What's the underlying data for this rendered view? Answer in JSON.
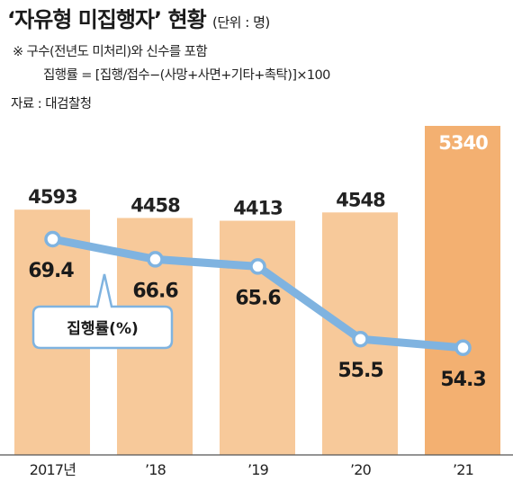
{
  "header": {
    "title": "‘자유형 미집행자’ 현황",
    "unit": "(단위 : 명)",
    "note1": "※ 구수(전년도 미처리)와 신수를 포함",
    "note2": "집행률 = [집행/접수−(사망+사면+기타+촉탁)]×100",
    "source": "자료 : 대검찰청"
  },
  "chart_data": {
    "type": "bar",
    "categories": [
      "2017년",
      "’18",
      "’19",
      "’20",
      "’21"
    ],
    "series": [
      {
        "type": "bar",
        "values": [
          4593,
          4458,
          4413,
          4548,
          5340
        ],
        "color": "#f7c99a",
        "last_color": "#f3b071"
      },
      {
        "type": "line",
        "name": "집행률(%)",
        "values": [
          69.4,
          66.6,
          65.6,
          55.5,
          54.3
        ],
        "color": "#7fb3e0"
      }
    ],
    "bar_value_labels": [
      "4593",
      "4458",
      "4413",
      "4548",
      "5340"
    ],
    "line_value_labels": [
      "69.4",
      "66.6",
      "65.6",
      "55.5",
      "54.3"
    ],
    "legend": {
      "label": "집행률(%)"
    }
  }
}
